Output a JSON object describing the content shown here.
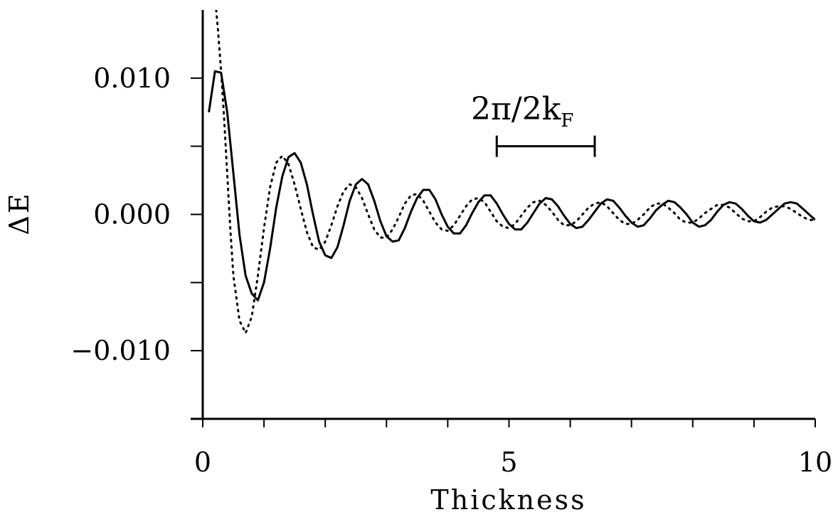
{
  "chart_data": {
    "type": "line",
    "title": "",
    "xlabel": "Thickness",
    "ylabel": "ΔE",
    "xlim": [
      0,
      10
    ],
    "ylim": [
      -0.015,
      0.015
    ],
    "x_ticks": [
      0,
      5,
      10
    ],
    "x_tick_labels": [
      "0",
      "5",
      "10"
    ],
    "x_minor_step": 1,
    "y_ticks": [
      -0.01,
      0.0,
      0.01
    ],
    "y_tick_labels": [
      "−0.010",
      "0.000",
      "0.010"
    ],
    "y_minor_step": 0.005,
    "grid": false,
    "legend": "none",
    "annotation": {
      "text_main": "2π/2k",
      "text_sub": "F",
      "bar_x": [
        4.8,
        6.4
      ],
      "bar_y": 0.005
    },
    "series": [
      {
        "style": "solid",
        "color": "#000000",
        "x": [
          0.1,
          0.2,
          0.3,
          0.4,
          0.5,
          0.6,
          0.7,
          0.8,
          0.9,
          1.0,
          1.1,
          1.2,
          1.3,
          1.4,
          1.5,
          1.6,
          1.7,
          1.8,
          1.9,
          2.0,
          2.1,
          2.2,
          2.3,
          2.4,
          2.5,
          2.6,
          2.7,
          2.8,
          2.9,
          3.0,
          3.1,
          3.2,
          3.3,
          3.4,
          3.5,
          3.6,
          3.7,
          3.8,
          3.9,
          4.0,
          4.1,
          4.2,
          4.3,
          4.4,
          4.5,
          4.6,
          4.7,
          4.8,
          4.9,
          5.0,
          5.1,
          5.2,
          5.3,
          5.4,
          5.5,
          5.6,
          5.7,
          5.8,
          5.9,
          6.0,
          6.1,
          6.2,
          6.3,
          6.4,
          6.5,
          6.6,
          6.7,
          6.8,
          6.9,
          7.0,
          7.1,
          7.2,
          7.3,
          7.4,
          7.5,
          7.6,
          7.7,
          7.8,
          7.9,
          8.0,
          8.1,
          8.2,
          8.3,
          8.4,
          8.5,
          8.6,
          8.7,
          8.8,
          8.9,
          9.0,
          9.1,
          9.2,
          9.3,
          9.4,
          9.5,
          9.6,
          9.7,
          9.8,
          9.9,
          10.0
        ],
        "y": [
          0.0075,
          0.0105,
          0.0104,
          0.0075,
          0.003,
          -0.0015,
          -0.0045,
          -0.0058,
          -0.0063,
          -0.005,
          -0.0025,
          0.0005,
          0.0028,
          0.0042,
          0.0045,
          0.0038,
          0.0022,
          0.0,
          -0.002,
          -0.003,
          -0.0032,
          -0.0024,
          -0.0008,
          0.001,
          0.0022,
          0.0026,
          0.0022,
          0.001,
          -0.0005,
          -0.0016,
          -0.002,
          -0.0019,
          -0.001,
          0.0002,
          0.0012,
          0.0018,
          0.0018,
          0.0011,
          0.0,
          -0.0009,
          -0.0014,
          -0.0014,
          -0.0008,
          0.0001,
          0.0009,
          0.0014,
          0.0014,
          0.0008,
          0.0,
          -0.0007,
          -0.0011,
          -0.0011,
          -0.0006,
          0.0001,
          0.0008,
          0.0012,
          0.0011,
          0.0006,
          -0.0001,
          -0.0007,
          -0.001,
          -0.0009,
          -0.0004,
          0.0002,
          0.0008,
          0.0011,
          0.001,
          0.0005,
          -0.0001,
          -0.0006,
          -0.0009,
          -0.0008,
          -0.0003,
          0.0003,
          0.0007,
          0.001,
          0.0009,
          0.0005,
          0.0,
          -0.0006,
          -0.0009,
          -0.0008,
          -0.0004,
          0.0002,
          0.0007,
          0.0009,
          0.0008,
          0.0004,
          -0.0001,
          -0.0005,
          -0.0006,
          -0.0004,
          0.0,
          0.0004,
          0.0008,
          0.0009,
          0.0008,
          0.0004,
          0.0,
          -0.0004
        ]
      },
      {
        "style": "dotted",
        "color": "#000000",
        "x": [
          0.22,
          0.25,
          0.3,
          0.35,
          0.4,
          0.45,
          0.5,
          0.6,
          0.7,
          0.8,
          0.9,
          1.0,
          1.1,
          1.2,
          1.3,
          1.4,
          1.5,
          1.6,
          1.7,
          1.8,
          1.9,
          2.0,
          2.1,
          2.2,
          2.3,
          2.4,
          2.5,
          2.6,
          2.7,
          2.8,
          2.9,
          3.0,
          3.1,
          3.2,
          3.3,
          3.4,
          3.5,
          3.6,
          3.7,
          3.8,
          3.9,
          4.0,
          4.1,
          4.2,
          4.3,
          4.4,
          4.5,
          4.6,
          4.7,
          4.8,
          4.9,
          5.0,
          5.1,
          5.2,
          5.3,
          5.4,
          5.5,
          5.6,
          5.7,
          5.8,
          5.9,
          6.0,
          6.1,
          6.2,
          6.3,
          6.4,
          6.5,
          6.6,
          6.7,
          6.8,
          6.9,
          7.0,
          7.1,
          7.2,
          7.3,
          7.4,
          7.5,
          7.6,
          7.7,
          7.8,
          7.9,
          8.0,
          8.1,
          8.2,
          8.3,
          8.4,
          8.5,
          8.6,
          8.7,
          8.8,
          8.9,
          9.0,
          9.1,
          9.2,
          9.3,
          9.4,
          9.5,
          9.6,
          9.7,
          9.8,
          9.9,
          10.0
        ],
        "y": [
          0.015,
          0.0135,
          0.0105,
          0.007,
          0.003,
          -0.001,
          -0.0045,
          -0.0078,
          -0.0087,
          -0.0075,
          -0.0045,
          -0.001,
          0.002,
          0.0038,
          0.0043,
          0.0037,
          0.0022,
          0.0004,
          -0.0013,
          -0.0024,
          -0.0026,
          -0.002,
          -0.0008,
          0.0006,
          0.0017,
          0.0022,
          0.002,
          0.0012,
          0.0,
          -0.0011,
          -0.0017,
          -0.0017,
          -0.0011,
          -0.0002,
          0.0008,
          0.0014,
          0.0015,
          0.001,
          0.0002,
          -0.0006,
          -0.0011,
          -0.0012,
          -0.0008,
          -0.0001,
          0.0006,
          0.0011,
          0.0012,
          0.0009,
          0.0002,
          -0.0005,
          -0.0009,
          -0.001,
          -0.0007,
          -0.0001,
          0.0005,
          0.0009,
          0.001,
          0.0007,
          0.0002,
          -0.0004,
          -0.0008,
          -0.0008,
          -0.0005,
          0.0,
          0.0005,
          0.0008,
          0.0009,
          0.0006,
          0.0001,
          -0.0004,
          -0.0007,
          -0.0007,
          -0.0004,
          0.0,
          0.0005,
          0.0008,
          0.0008,
          0.0005,
          0.0001,
          -0.0004,
          -0.0006,
          -0.0006,
          -0.0003,
          0.0001,
          0.0004,
          0.0007,
          0.0007,
          0.0005,
          0.0001,
          -0.0003,
          -0.0005,
          -0.0005,
          -0.0002,
          0.0002,
          0.0005,
          0.0006,
          0.0006,
          0.0004,
          0.0001,
          -0.0002,
          -0.0004,
          -0.0004
        ]
      }
    ]
  }
}
